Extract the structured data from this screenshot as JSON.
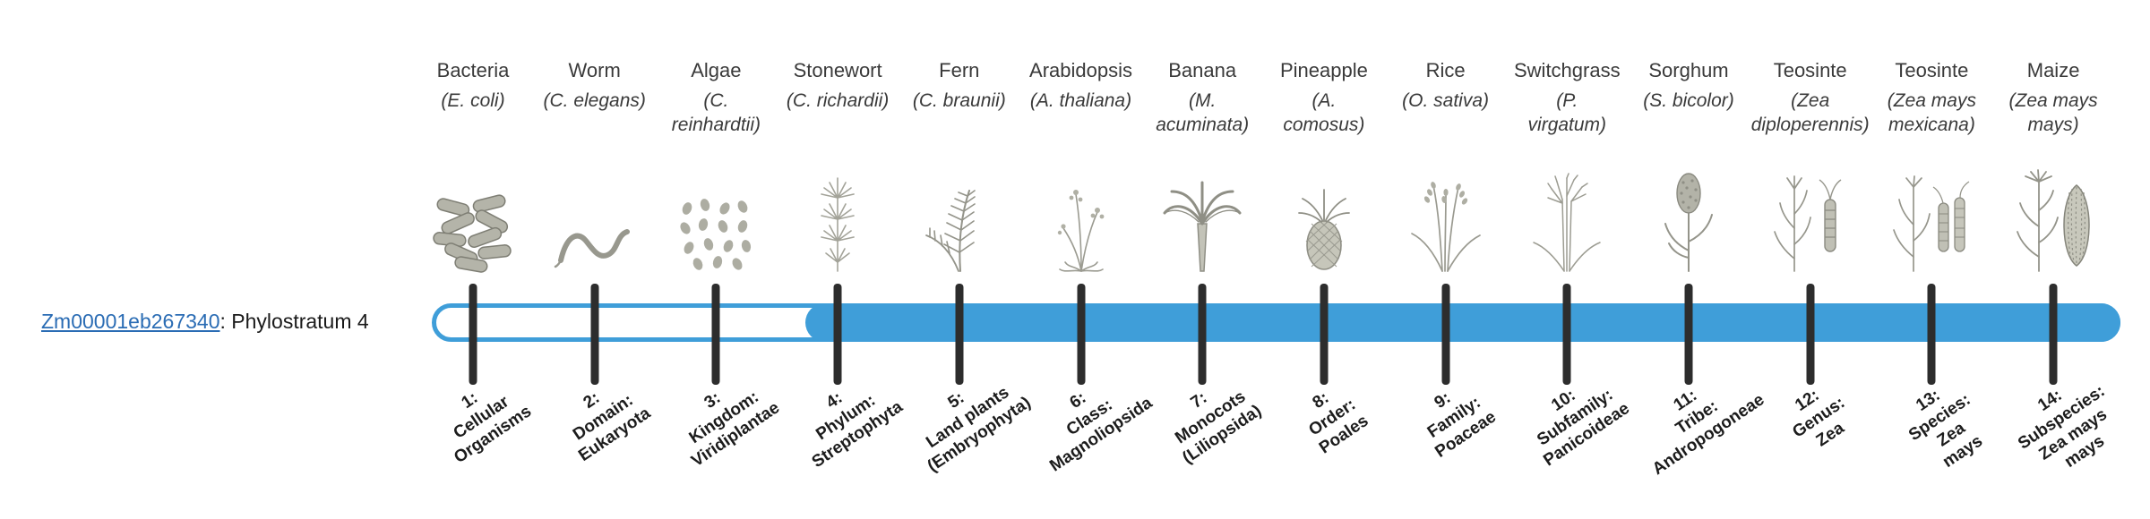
{
  "colors": {
    "accent": "#3f9ed9",
    "tick": "#2d2d2d",
    "link": "#2a6cb4",
    "text": "#3a3a3a"
  },
  "gene": {
    "id": "Zm00001eb267340",
    "suffix": ": Phylostratum 4",
    "phylostratum": 4
  },
  "timeline": {
    "total_strata": 14,
    "fill_starts_at_stratum": 4
  },
  "strata": [
    {
      "index": 1,
      "organism": "Bacteria",
      "sci": "(E. coli)",
      "icon": "bacteria",
      "label": "1:\nCellular\nOrganisms"
    },
    {
      "index": 2,
      "organism": "Worm",
      "sci": "(C. elegans)",
      "icon": "worm",
      "label": "2:\nDomain:\nEukaryota"
    },
    {
      "index": 3,
      "organism": "Algae",
      "sci": "(C.\nreinhardtii)",
      "icon": "algae",
      "label": "3:\nKingdom:\nViridiplantae"
    },
    {
      "index": 4,
      "organism": "Stonewort",
      "sci": "(C. richardii)",
      "icon": "stonewort",
      "label": "4:\nPhylum:\nStreptophyta"
    },
    {
      "index": 5,
      "organism": "Fern",
      "sci": "(C. braunii)",
      "icon": "fern",
      "label": "5:\nLand plants\n(Embryophyta)"
    },
    {
      "index": 6,
      "organism": "Arabidopsis",
      "sci": "(A. thaliana)",
      "icon": "arabidopsis",
      "label": "6:\nClass:\nMagnoliopsida"
    },
    {
      "index": 7,
      "organism": "Banana",
      "sci": "(M.\nacuminata)",
      "icon": "banana",
      "label": "7:\nMonocots\n(Liliopsida)"
    },
    {
      "index": 8,
      "organism": "Pineapple",
      "sci": "(A.\ncomosus)",
      "icon": "pineapple",
      "label": "8:\nOrder:\nPoales"
    },
    {
      "index": 9,
      "organism": "Rice",
      "sci": "(O. sativa)",
      "icon": "rice",
      "label": "9:\nFamily:\nPoaceae"
    },
    {
      "index": 10,
      "organism": "Switchgrass",
      "sci": "(P.\nvirgatum)",
      "icon": "switchgrass",
      "label": "10:\nSubfamily:\nPanicoideae"
    },
    {
      "index": 11,
      "organism": "Sorghum",
      "sci": "(S. bicolor)",
      "icon": "sorghum",
      "label": "11:\nTribe:\nAndropogoneae"
    },
    {
      "index": 12,
      "organism": "Teosinte",
      "sci": "(Zea\ndiploperennis)",
      "icon": "teosinte-diploperennis",
      "label": "12:\nGenus:\nZea"
    },
    {
      "index": 13,
      "organism": "Teosinte",
      "sci": "(Zea mays\nmexicana)",
      "icon": "teosinte-mexicana",
      "label": "13:\nSpecies:\nZea\nmays"
    },
    {
      "index": 14,
      "organism": "Maize",
      "sci": "(Zea mays\nmays)",
      "icon": "maize",
      "label": "14:\nSubspecies:\nZea mays\nmays"
    }
  ]
}
